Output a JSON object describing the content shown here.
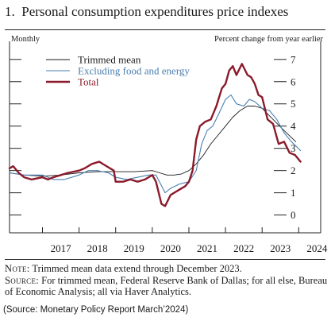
{
  "figure": {
    "number": "1.",
    "title": "Personal consumption expenditures price indexes",
    "frequency_label": "Monthly",
    "units_label": "Percent change from year earlier",
    "note_label": "Note:",
    "note_text": "Trimmed mean data extend through December 2023.",
    "source_label": "Source:",
    "source_text": "For trimmed mean, Federal Reserve Bank of Dallas; for all else, Bureau of Economic Analysis; all via Haver Analytics.",
    "citation": "(Source: Monetary Policy Report March’2024)"
  },
  "colors": {
    "trimmed_mean": "#1a1a1a",
    "excluding_food_energy": "#4a7fb0",
    "total": "#8b1a2b"
  },
  "chart_data": {
    "type": "line",
    "x_tick_labels": [
      "2017",
      "2018",
      "2019",
      "2020",
      "2021",
      "2022",
      "2023",
      "2024"
    ],
    "y_ticks": [
      0,
      1,
      2,
      3,
      4,
      5,
      6,
      7
    ],
    "ylim": [
      -0.8,
      7.6
    ],
    "xlim": [
      2016.1,
      2024.6
    ],
    "grid": false,
    "legend_position": "top-left",
    "series": [
      {
        "name": "Trimmed mean",
        "key": "trimmed_mean",
        "x": [
          2016.1,
          2016.5,
          2017.0,
          2017.5,
          2018.0,
          2018.5,
          2019.0,
          2019.5,
          2020.0,
          2020.2,
          2020.4,
          2020.6,
          2020.8,
          2021.0,
          2021.2,
          2021.4,
          2021.6,
          2021.8,
          2022.0,
          2022.2,
          2022.4,
          2022.6,
          2022.8,
          2023.0,
          2023.3,
          2023.6,
          2023.92
        ],
        "y": [
          1.9,
          1.8,
          1.75,
          1.8,
          1.9,
          1.95,
          1.95,
          1.95,
          2.0,
          1.9,
          1.8,
          1.8,
          1.85,
          2.0,
          2.3,
          2.7,
          3.2,
          3.6,
          4.0,
          4.4,
          4.7,
          4.9,
          4.9,
          4.8,
          4.3,
          3.8,
          3.3
        ]
      },
      {
        "name": "Excluding food and energy",
        "key": "excluding_food_energy",
        "x": [
          2016.1,
          2016.5,
          2017.0,
          2017.3,
          2017.6,
          2018.0,
          2018.25,
          2018.5,
          2018.8,
          2019.0,
          2019.3,
          2019.6,
          2019.9,
          2020.1,
          2020.35,
          2020.5,
          2020.75,
          2021.0,
          2021.2,
          2021.35,
          2021.5,
          2021.65,
          2021.8,
          2022.0,
          2022.15,
          2022.3,
          2022.5,
          2022.65,
          2022.8,
          2023.0,
          2023.2,
          2023.4,
          2023.6,
          2023.8,
          2024.05
        ],
        "y": [
          1.9,
          1.8,
          1.8,
          1.6,
          1.6,
          1.8,
          2.0,
          2.0,
          1.9,
          1.7,
          1.6,
          1.7,
          1.8,
          1.8,
          1.0,
          1.2,
          1.4,
          1.5,
          2.0,
          3.2,
          3.8,
          4.0,
          4.5,
          5.2,
          5.4,
          5.0,
          4.9,
          5.2,
          5.1,
          4.8,
          4.7,
          4.3,
          3.7,
          3.3,
          2.9
        ]
      },
      {
        "name": "Total",
        "key": "total",
        "x": [
          2016.1,
          2016.2,
          2016.35,
          2016.5,
          2016.7,
          2017.0,
          2017.15,
          2017.3,
          2017.5,
          2017.7,
          2018.0,
          2018.15,
          2018.35,
          2018.55,
          2018.75,
          2018.95,
          2019.0,
          2019.2,
          2019.4,
          2019.6,
          2019.8,
          2020.0,
          2020.1,
          2020.25,
          2020.35,
          2020.5,
          2020.7,
          2020.9,
          2021.0,
          2021.1,
          2021.2,
          2021.3,
          2021.45,
          2021.6,
          2021.75,
          2021.9,
          2022.0,
          2022.1,
          2022.2,
          2022.3,
          2022.45,
          2022.6,
          2022.7,
          2022.8,
          2022.9,
          2023.0,
          2023.15,
          2023.3,
          2023.45,
          2023.6,
          2023.75,
          2023.9,
          2024.05
        ],
        "y": [
          2.1,
          2.2,
          1.9,
          1.7,
          1.6,
          1.7,
          1.6,
          1.7,
          1.8,
          1.9,
          2.0,
          2.1,
          2.3,
          2.4,
          2.2,
          2.0,
          1.5,
          1.5,
          1.6,
          1.5,
          1.6,
          1.8,
          1.5,
          0.5,
          0.4,
          0.9,
          1.1,
          1.3,
          1.5,
          2.0,
          3.4,
          4.0,
          4.2,
          4.3,
          4.9,
          5.7,
          5.9,
          6.5,
          6.7,
          6.3,
          6.8,
          6.3,
          6.2,
          5.9,
          5.4,
          5.3,
          4.3,
          4.1,
          3.2,
          3.3,
          2.8,
          2.7,
          2.4
        ]
      }
    ]
  }
}
